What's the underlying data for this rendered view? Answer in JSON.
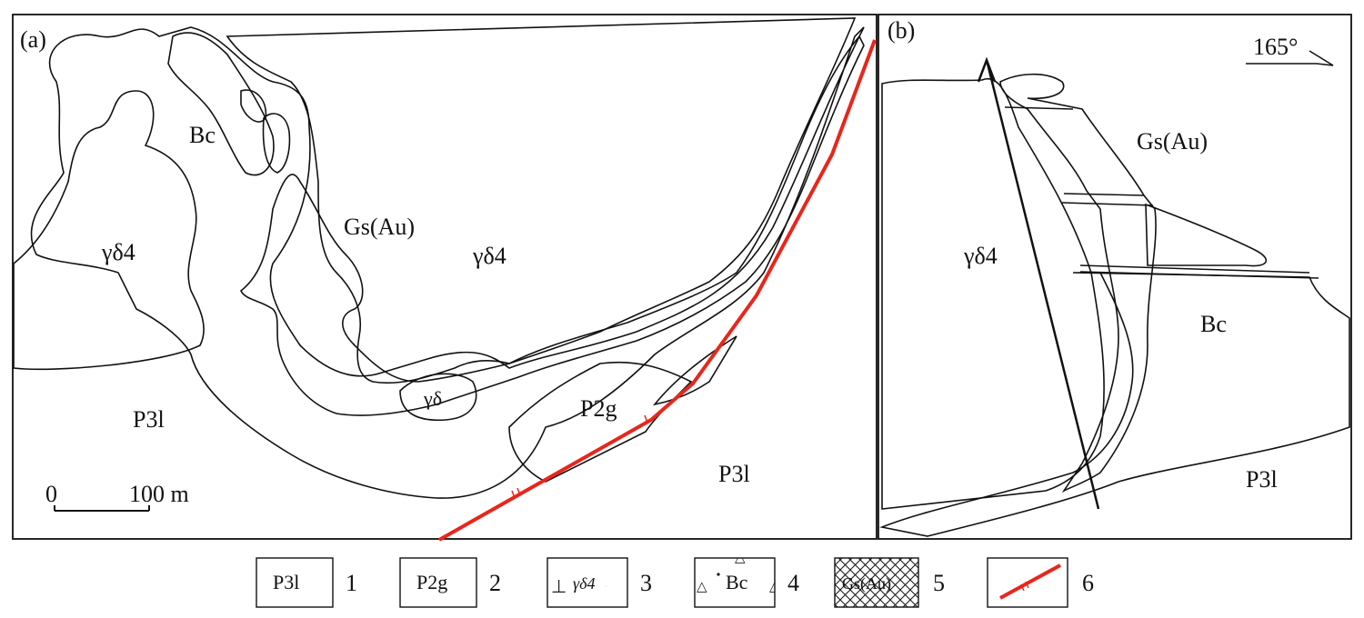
{
  "panel_a": {
    "panel_label": "(a)",
    "labels": {
      "bc": "Bc",
      "gs_au": "Gs(Au)",
      "gd4_left": "γδ4",
      "gd4_center": "γδ4",
      "gd_small": "γδ",
      "p3l_left": "P3l",
      "p2g": "P2g",
      "p3l_right": "P3l"
    },
    "scale_bar": {
      "start_label": "0",
      "end_label": "100 m"
    }
  },
  "panel_b": {
    "panel_label": "(b)",
    "orientation": "165°",
    "labels": {
      "gs_au": "Gs(Au)",
      "gd4": "γδ4",
      "bc": "Bc",
      "p3l": "P3l"
    }
  },
  "legend": [
    {
      "number": "1",
      "swatch_text": "P3l",
      "pattern": "blank"
    },
    {
      "number": "2",
      "swatch_text": "P2g",
      "pattern": "blank"
    },
    {
      "number": "3",
      "swatch_text": "γδ4",
      "pattern": "granodiorite"
    },
    {
      "number": "4",
      "swatch_text": "Bc",
      "pattern": "breccia"
    },
    {
      "number": "5",
      "swatch_text": "Gs(Au)",
      "pattern": "crosshatch"
    },
    {
      "number": "6",
      "swatch_text": "",
      "pattern": "fault"
    }
  ],
  "colors": {
    "fault": "#e8261c",
    "line": "#111111",
    "background": "#ffffff"
  },
  "icons": {
    "granodiorite": "plus-and-perpendicular-symbols",
    "breccia": "triangles-and-dots",
    "orebody": "crosshatch",
    "fault": "red-line-with-ticks",
    "orientation": "strike-arrow"
  }
}
